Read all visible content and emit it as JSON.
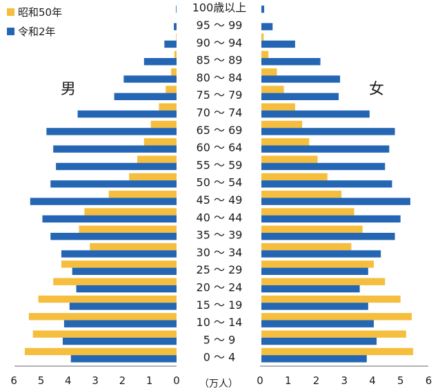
{
  "chart_data": {
    "type": "bar",
    "orientation": "horizontal",
    "layout": "population-pyramid",
    "left_panel_label": "男",
    "right_panel_label": "女",
    "unit_label": "（万人）",
    "categories": [
      "0 ～ 4",
      "5 ～ 9",
      "10 ～ 14",
      "15 ～ 19",
      "20 ～ 24",
      "25 ～ 29",
      "30 ～ 34",
      "35 ～ 39",
      "40 ～ 44",
      "45 ～ 49",
      "50 ～ 54",
      "55 ～ 59",
      "60 ～ 64",
      "65 ～ 69",
      "70 ～ 74",
      "75 ～ 79",
      "80 ～ 84",
      "85 ～ 89",
      "90 ～ 94",
      "95 ～ 99",
      "100歳以上"
    ],
    "xlim": [
      0,
      6
    ],
    "x_ticks": [
      "0",
      "1",
      "2",
      "3",
      "4",
      "5",
      "6"
    ],
    "series": [
      {
        "name": "昭和50年",
        "color": "#F5BE3E",
        "male": [
          5.6,
          5.3,
          5.45,
          5.1,
          4.55,
          4.25,
          3.2,
          3.6,
          3.4,
          2.5,
          1.75,
          1.45,
          1.2,
          0.95,
          0.65,
          0.4,
          0.2,
          0.08,
          0.02,
          0.0,
          0.0
        ],
        "female": [
          5.4,
          5.15,
          5.35,
          4.95,
          4.4,
          4.0,
          3.2,
          3.6,
          3.3,
          2.85,
          2.35,
          2.0,
          1.7,
          1.45,
          1.2,
          0.8,
          0.55,
          0.25,
          0.08,
          0.0,
          0.0
        ]
      },
      {
        "name": "令和2年",
        "color": "#2466B4",
        "male": [
          3.9,
          4.2,
          4.15,
          3.95,
          3.7,
          3.85,
          4.25,
          4.65,
          4.95,
          5.4,
          4.65,
          4.45,
          4.55,
          4.8,
          3.65,
          2.3,
          1.95,
          1.2,
          0.45,
          0.1,
          0.02
        ],
        "female": [
          3.75,
          4.1,
          4.0,
          3.8,
          3.5,
          3.8,
          4.25,
          4.75,
          4.95,
          5.3,
          4.65,
          4.4,
          4.55,
          4.75,
          3.85,
          2.75,
          2.8,
          2.1,
          1.2,
          0.4,
          0.1
        ]
      }
    ]
  }
}
